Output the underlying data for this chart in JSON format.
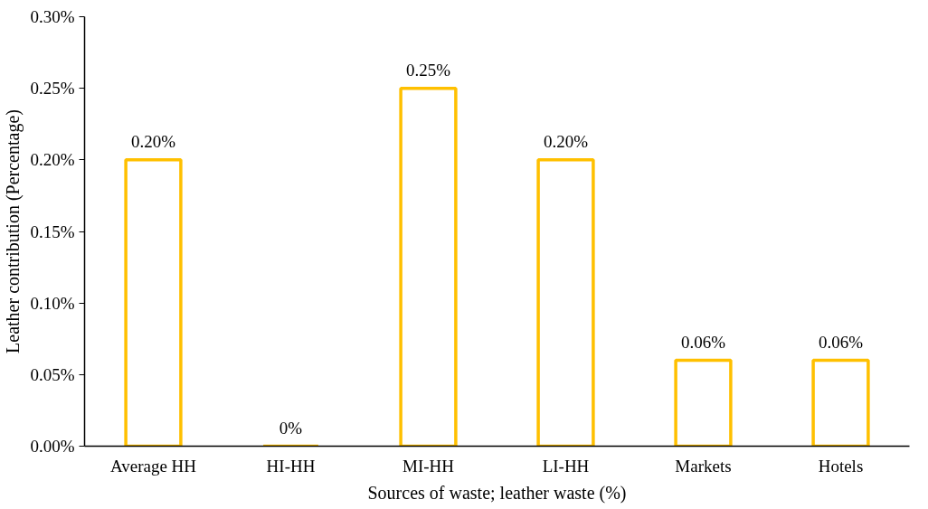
{
  "chart_data": {
    "type": "bar",
    "xlabel": "Sources of waste; leather waste (%)",
    "ylabel": "Leather contribution (Percentage)",
    "categories": [
      "Average HH",
      "HI-HH",
      "MI-HH",
      "LI-HH",
      "Markets",
      "Hotels"
    ],
    "values": [
      0.2,
      0,
      0.25,
      0.2,
      0.06,
      0.06
    ],
    "value_labels": [
      "0.20%",
      "0%",
      "0.25%",
      "0.20%",
      "0.06%",
      "0.06%"
    ],
    "color": "#ffc000",
    "ylim": [
      0,
      0.3
    ],
    "yticks": [
      {
        "value": 0,
        "label": "0.00%"
      },
      {
        "value": 0.05,
        "label": "0.05%"
      },
      {
        "value": 0.1,
        "label": "0.10%"
      },
      {
        "value": 0.15,
        "label": "0.15%"
      },
      {
        "value": 0.2,
        "label": "0.20%"
      },
      {
        "value": 0.25,
        "label": "0.25%"
      },
      {
        "value": 0.3,
        "label": "0.30%"
      }
    ],
    "grid": false
  }
}
